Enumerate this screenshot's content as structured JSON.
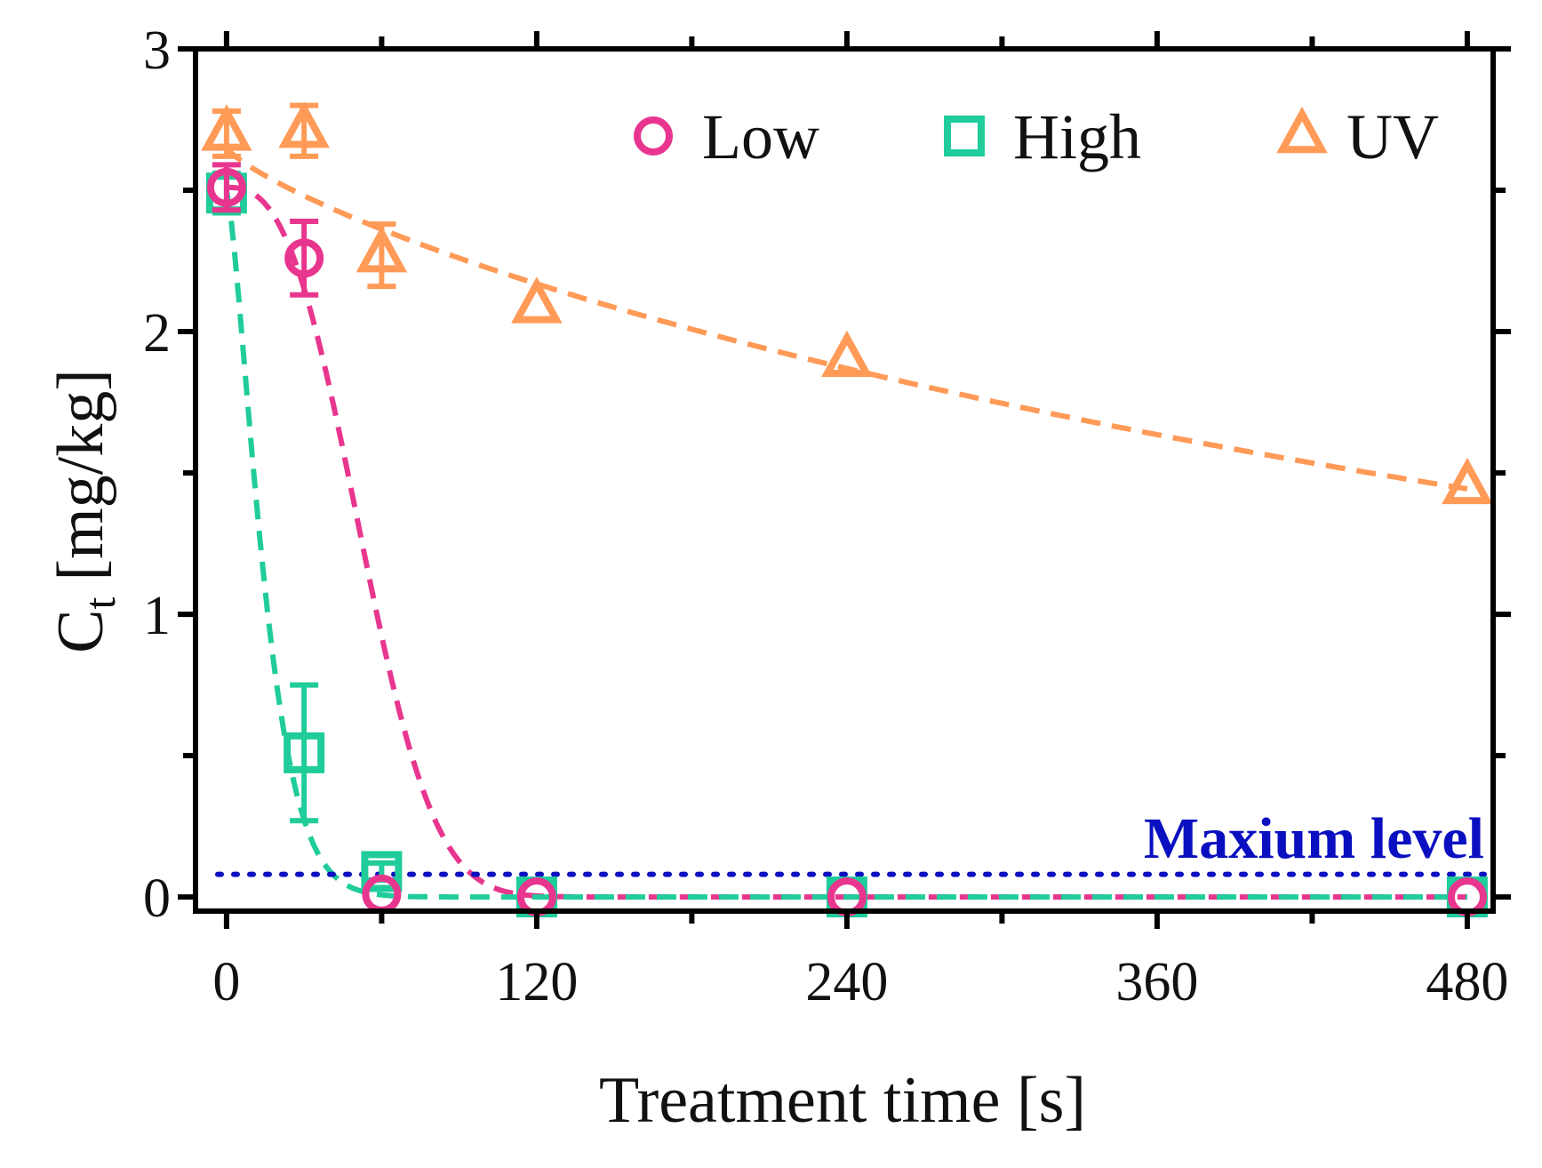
{
  "chart_data": {
    "type": "scatter",
    "xlabel": "Treatment time [s]",
    "ylabel_main": "C",
    "ylabel_sub": "t",
    "ylabel_unit": "[mg/kg]",
    "xlim": [
      -12,
      490
    ],
    "ylim": [
      -0.05,
      3.0
    ],
    "xticks": [
      0,
      120,
      240,
      360,
      480
    ],
    "yticks": [
      0,
      1,
      2,
      3
    ],
    "colors": {
      "low": "#e8368f",
      "high": "#1fcc9a",
      "uv": "#ff9a57",
      "reference": "#0a10c0",
      "axis": "#000000"
    },
    "series": [
      {
        "name": "Low",
        "key": "low",
        "marker": "circle",
        "x": [
          0,
          30,
          60,
          120,
          240,
          480
        ],
        "y": [
          2.51,
          2.26,
          0.01,
          0.0,
          0.0,
          0.0
        ],
        "err": [
          0.08,
          0.13,
          0.0,
          0.0,
          0.0,
          0.0
        ],
        "fit": {
          "model": "weibull",
          "c0": 2.51,
          "tau": 60,
          "beta": 2.7
        }
      },
      {
        "name": "High",
        "key": "high",
        "marker": "square",
        "x": [
          0,
          30,
          60,
          120,
          240,
          480
        ],
        "y": [
          2.49,
          0.51,
          0.09,
          0.0,
          0.0,
          0.0
        ],
        "err": [
          0.07,
          0.24,
          0.03,
          0.0,
          0.0,
          0.0
        ],
        "fit": {
          "model": "weibull",
          "c0": 2.5,
          "tau": 17,
          "beta": 1.4
        }
      },
      {
        "name": "UV",
        "key": "uv",
        "marker": "triangle",
        "x": [
          0,
          30,
          60,
          120,
          240,
          480
        ],
        "y": [
          2.7,
          2.71,
          2.27,
          2.09,
          1.9,
          1.45
        ],
        "err": [
          0.08,
          0.09,
          0.11,
          0.0,
          0.0,
          0.0
        ],
        "fit": {
          "model": "weibull",
          "c0": 2.65,
          "tau": 895,
          "beta": 0.8
        }
      }
    ],
    "reference_line": {
      "label": "Maxium level",
      "y": 0.08
    },
    "legend_position": "top-right"
  }
}
